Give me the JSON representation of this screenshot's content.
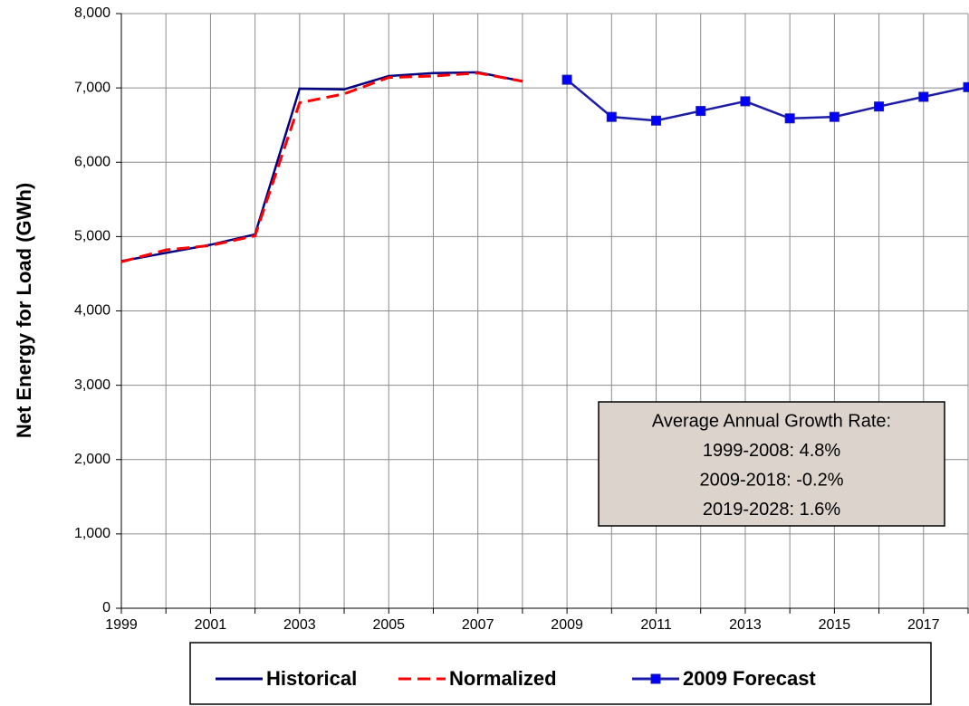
{
  "chart_data": {
    "type": "line",
    "y_label": "Net Energy for Load (GWh)",
    "xlim": [
      1999,
      2018
    ],
    "xticks": [
      1999,
      2001,
      2003,
      2005,
      2007,
      2009,
      2011,
      2013,
      2015,
      2017
    ],
    "xminor_ticks": [
      2000,
      2002,
      2004,
      2006,
      2008,
      2010,
      2012,
      2014,
      2016,
      2018
    ],
    "ylim": [
      0,
      8000
    ],
    "yticks": [
      0,
      {
        "value": 1000,
        "label": "1,000"
      },
      {
        "value": 2000,
        "label": "2,000"
      },
      {
        "value": 3000,
        "label": "3,000"
      },
      {
        "value": 4000,
        "label": "4,000"
      },
      {
        "value": 5000,
        "label": "5,000"
      },
      {
        "value": 6000,
        "label": "6,000"
      },
      {
        "value": 7000,
        "label": "7,000"
      },
      {
        "value": 8000,
        "label": "8,000"
      }
    ],
    "grid": true,
    "legend": "bottom",
    "series": [
      {
        "name": "Historical",
        "color": "#000080",
        "dash": false,
        "x": [
          1999,
          2000,
          2001,
          2002,
          2003,
          2004,
          2005,
          2006,
          2007,
          2008
        ],
        "values": [
          4670,
          4780,
          4890,
          5030,
          6990,
          6980,
          7160,
          7200,
          7210,
          7090
        ]
      },
      {
        "name": "Normalized",
        "color": "#ff0000",
        "dash": true,
        "x": [
          1999,
          2000,
          2001,
          2002,
          2003,
          2004,
          2005,
          2006,
          2007,
          2008
        ],
        "values": [
          4660,
          4820,
          4880,
          5010,
          6800,
          6920,
          7140,
          7160,
          7200,
          7090
        ]
      },
      {
        "name": "2009 Forecast",
        "color": "#1c1ca8",
        "marker_color": "#0000ff",
        "dash": false,
        "x": [
          2009,
          2010,
          2011,
          2012,
          2013,
          2014,
          2015,
          2016,
          2017,
          2018
        ],
        "values": [
          7110,
          6610,
          6560,
          6690,
          6820,
          6590,
          6610,
          6750,
          6880,
          7010
        ]
      }
    ],
    "annotation": [
      "Average Annual Growth Rate:",
      "1999-2008: 4.8%",
      "2009-2018: -0.2%",
      "2019-2028: 1.6%"
    ]
  }
}
